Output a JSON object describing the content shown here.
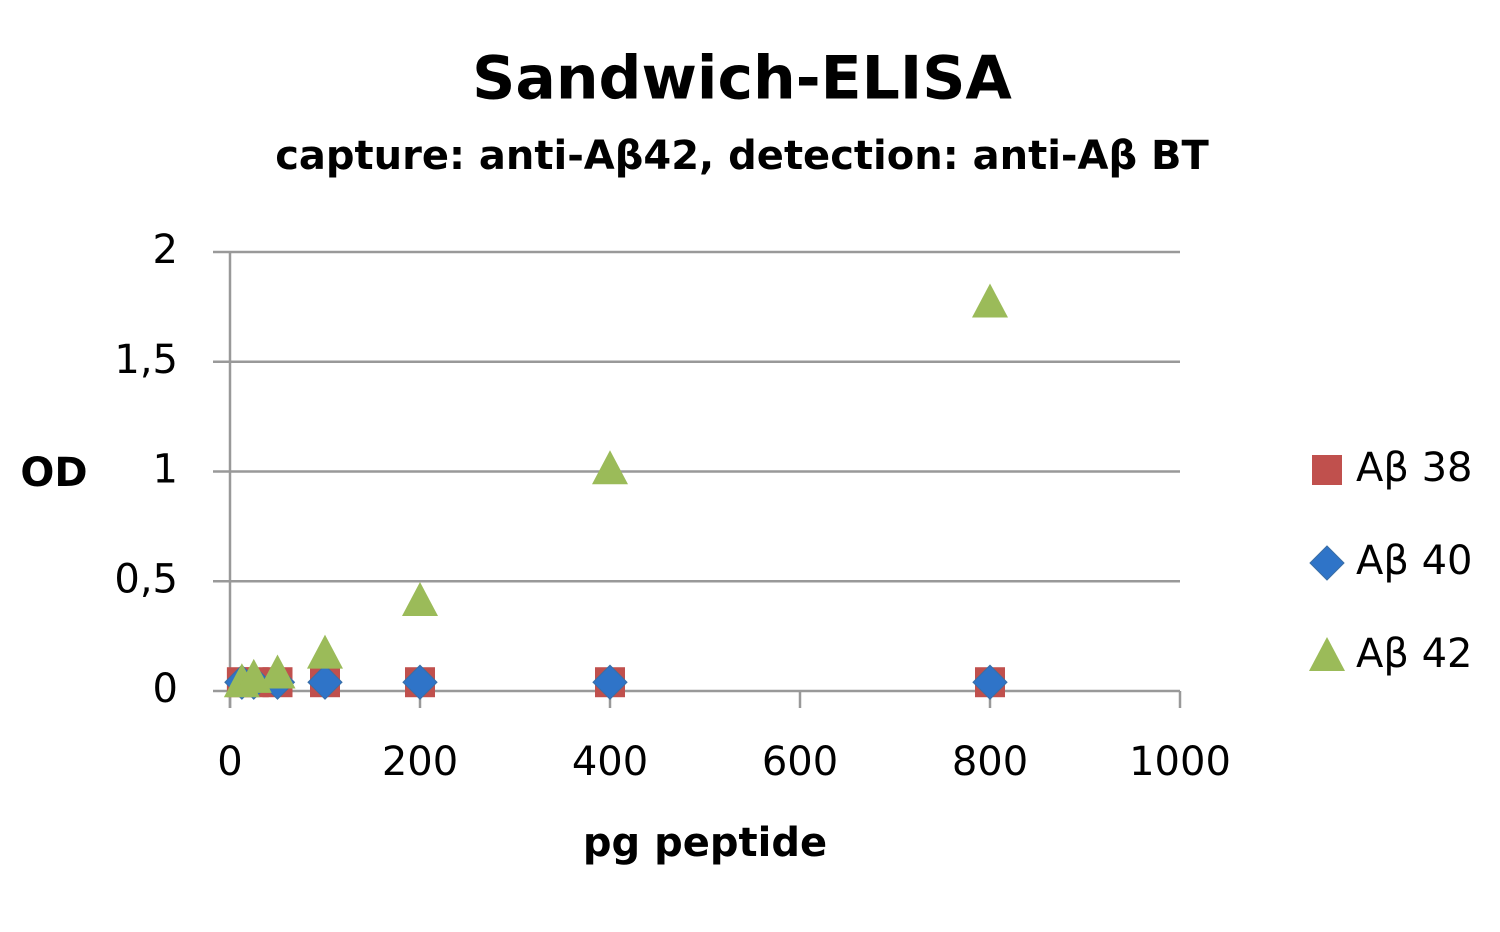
{
  "chart_data": {
    "type": "scatter",
    "title": "Sandwich-ELISA",
    "subtitle": "capture: anti-Aβ42, detection: anti-Aβ BT",
    "x_label": "pg peptide",
    "y_label": "OD",
    "x": [
      12.5,
      25,
      50,
      100,
      200,
      400,
      800
    ],
    "series": [
      {
        "name": "Aβ 38",
        "color": "#c0504d",
        "marker": "square",
        "values": [
          0.04,
          0.04,
          0.04,
          0.04,
          0.04,
          0.04,
          0.04
        ]
      },
      {
        "name": "Aβ 40",
        "color": "#2f74c8",
        "marker": "diamond",
        "values": [
          0.04,
          0.04,
          0.04,
          0.04,
          0.04,
          0.04,
          0.04
        ]
      },
      {
        "name": "Aβ 42",
        "color": "#9bbb59",
        "marker": "triangle",
        "values": [
          0.04,
          0.06,
          0.08,
          0.17,
          0.41,
          1.01,
          1.77
        ]
      }
    ],
    "xlim": [
      0,
      1000
    ],
    "xticks": [
      0,
      200,
      400,
      600,
      800,
      1000
    ],
    "ylim": [
      0,
      2
    ],
    "yticks": [
      0,
      {
        "value": 0.5,
        "label": "0,5"
      },
      1,
      {
        "value": 1.5,
        "label": "1,5"
      },
      2
    ],
    "grid": true,
    "legend": "right"
  }
}
